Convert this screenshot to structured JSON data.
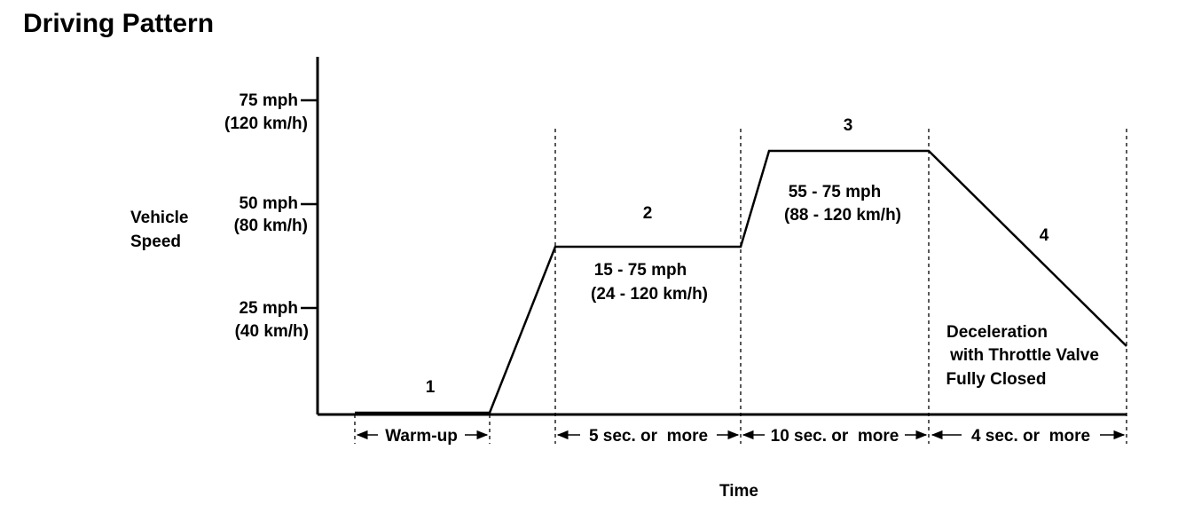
{
  "title": "Driving Pattern",
  "y_axis": {
    "label_line1": "Vehicle",
    "label_line2": "Speed",
    "ticks": [
      {
        "mph": "75 mph",
        "kmh": "(120 km/h)"
      },
      {
        "mph": "50 mph",
        "kmh": "(80 km/h)"
      },
      {
        "mph": "25 mph",
        "kmh": "(40 km/h)"
      }
    ]
  },
  "x_axis": {
    "label": "Time"
  },
  "phases": [
    {
      "number": "1",
      "duration": "Warm-up"
    },
    {
      "number": "2",
      "speed_mph": "15 - 75 mph",
      "speed_kmh": "(24 - 120 km/h)",
      "duration": "5 sec. or  more"
    },
    {
      "number": "3",
      "speed_mph": "55 - 75 mph",
      "speed_kmh": "(88 - 120 km/h)",
      "duration": "10 sec. or  more"
    },
    {
      "number": "4",
      "note_line1": "Deceleration",
      "note_line2": "with Throttle Valve",
      "note_line3": "Fully Closed",
      "duration": "4 sec. or  more"
    }
  ]
}
